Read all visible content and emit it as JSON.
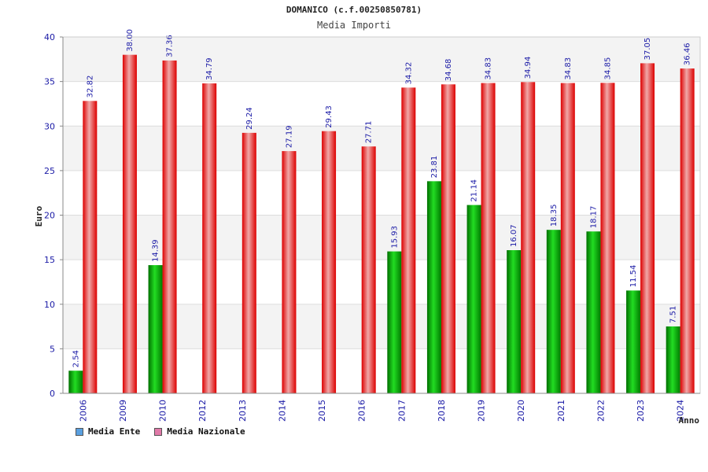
{
  "chart_data": {
    "type": "bar",
    "title": "DOMANICO (c.f.00250850781)",
    "subtitle": "Media Importi",
    "xlabel": "Anno",
    "ylabel": "Euro",
    "ylim": [
      0,
      40
    ],
    "yticks": [
      "0",
      "5",
      "10",
      "15",
      "20",
      "25",
      "30",
      "35",
      "40"
    ],
    "categories": [
      "2006",
      "2009",
      "2010",
      "2012",
      "2013",
      "2014",
      "2015",
      "2016",
      "2017",
      "2018",
      "2019",
      "2020",
      "2021",
      "2022",
      "2023",
      "2024"
    ],
    "series": [
      {
        "name": "Media Ente",
        "color": "#00b000",
        "legend_color": "#5aa0e0",
        "values": [
          2.54,
          null,
          14.39,
          null,
          null,
          null,
          null,
          null,
          15.93,
          23.81,
          21.14,
          16.07,
          18.35,
          18.17,
          11.54,
          7.51
        ],
        "labels": [
          "2.54",
          "",
          "14.39",
          "",
          "",
          "",
          "",
          "",
          "15.93",
          "23.81",
          "21.14",
          "16.07",
          "18.35",
          "18.17",
          "11.54",
          "7.51"
        ]
      },
      {
        "name": "Media Nazionale",
        "color": "#ee0000",
        "legend_color": "#e07aa8",
        "values": [
          32.82,
          38.0,
          37.36,
          34.79,
          29.24,
          27.19,
          29.43,
          27.71,
          34.32,
          34.68,
          34.83,
          34.94,
          34.83,
          34.85,
          37.05,
          36.46
        ],
        "labels": [
          "32.82",
          "38.00",
          "37.36",
          "34.79",
          "29.24",
          "27.19",
          "29.43",
          "27.71",
          "34.32",
          "34.68",
          "34.83",
          "34.94",
          "34.83",
          "34.85",
          "37.05",
          "36.46"
        ]
      }
    ],
    "grid": true,
    "legend_position": "bottom-left"
  }
}
